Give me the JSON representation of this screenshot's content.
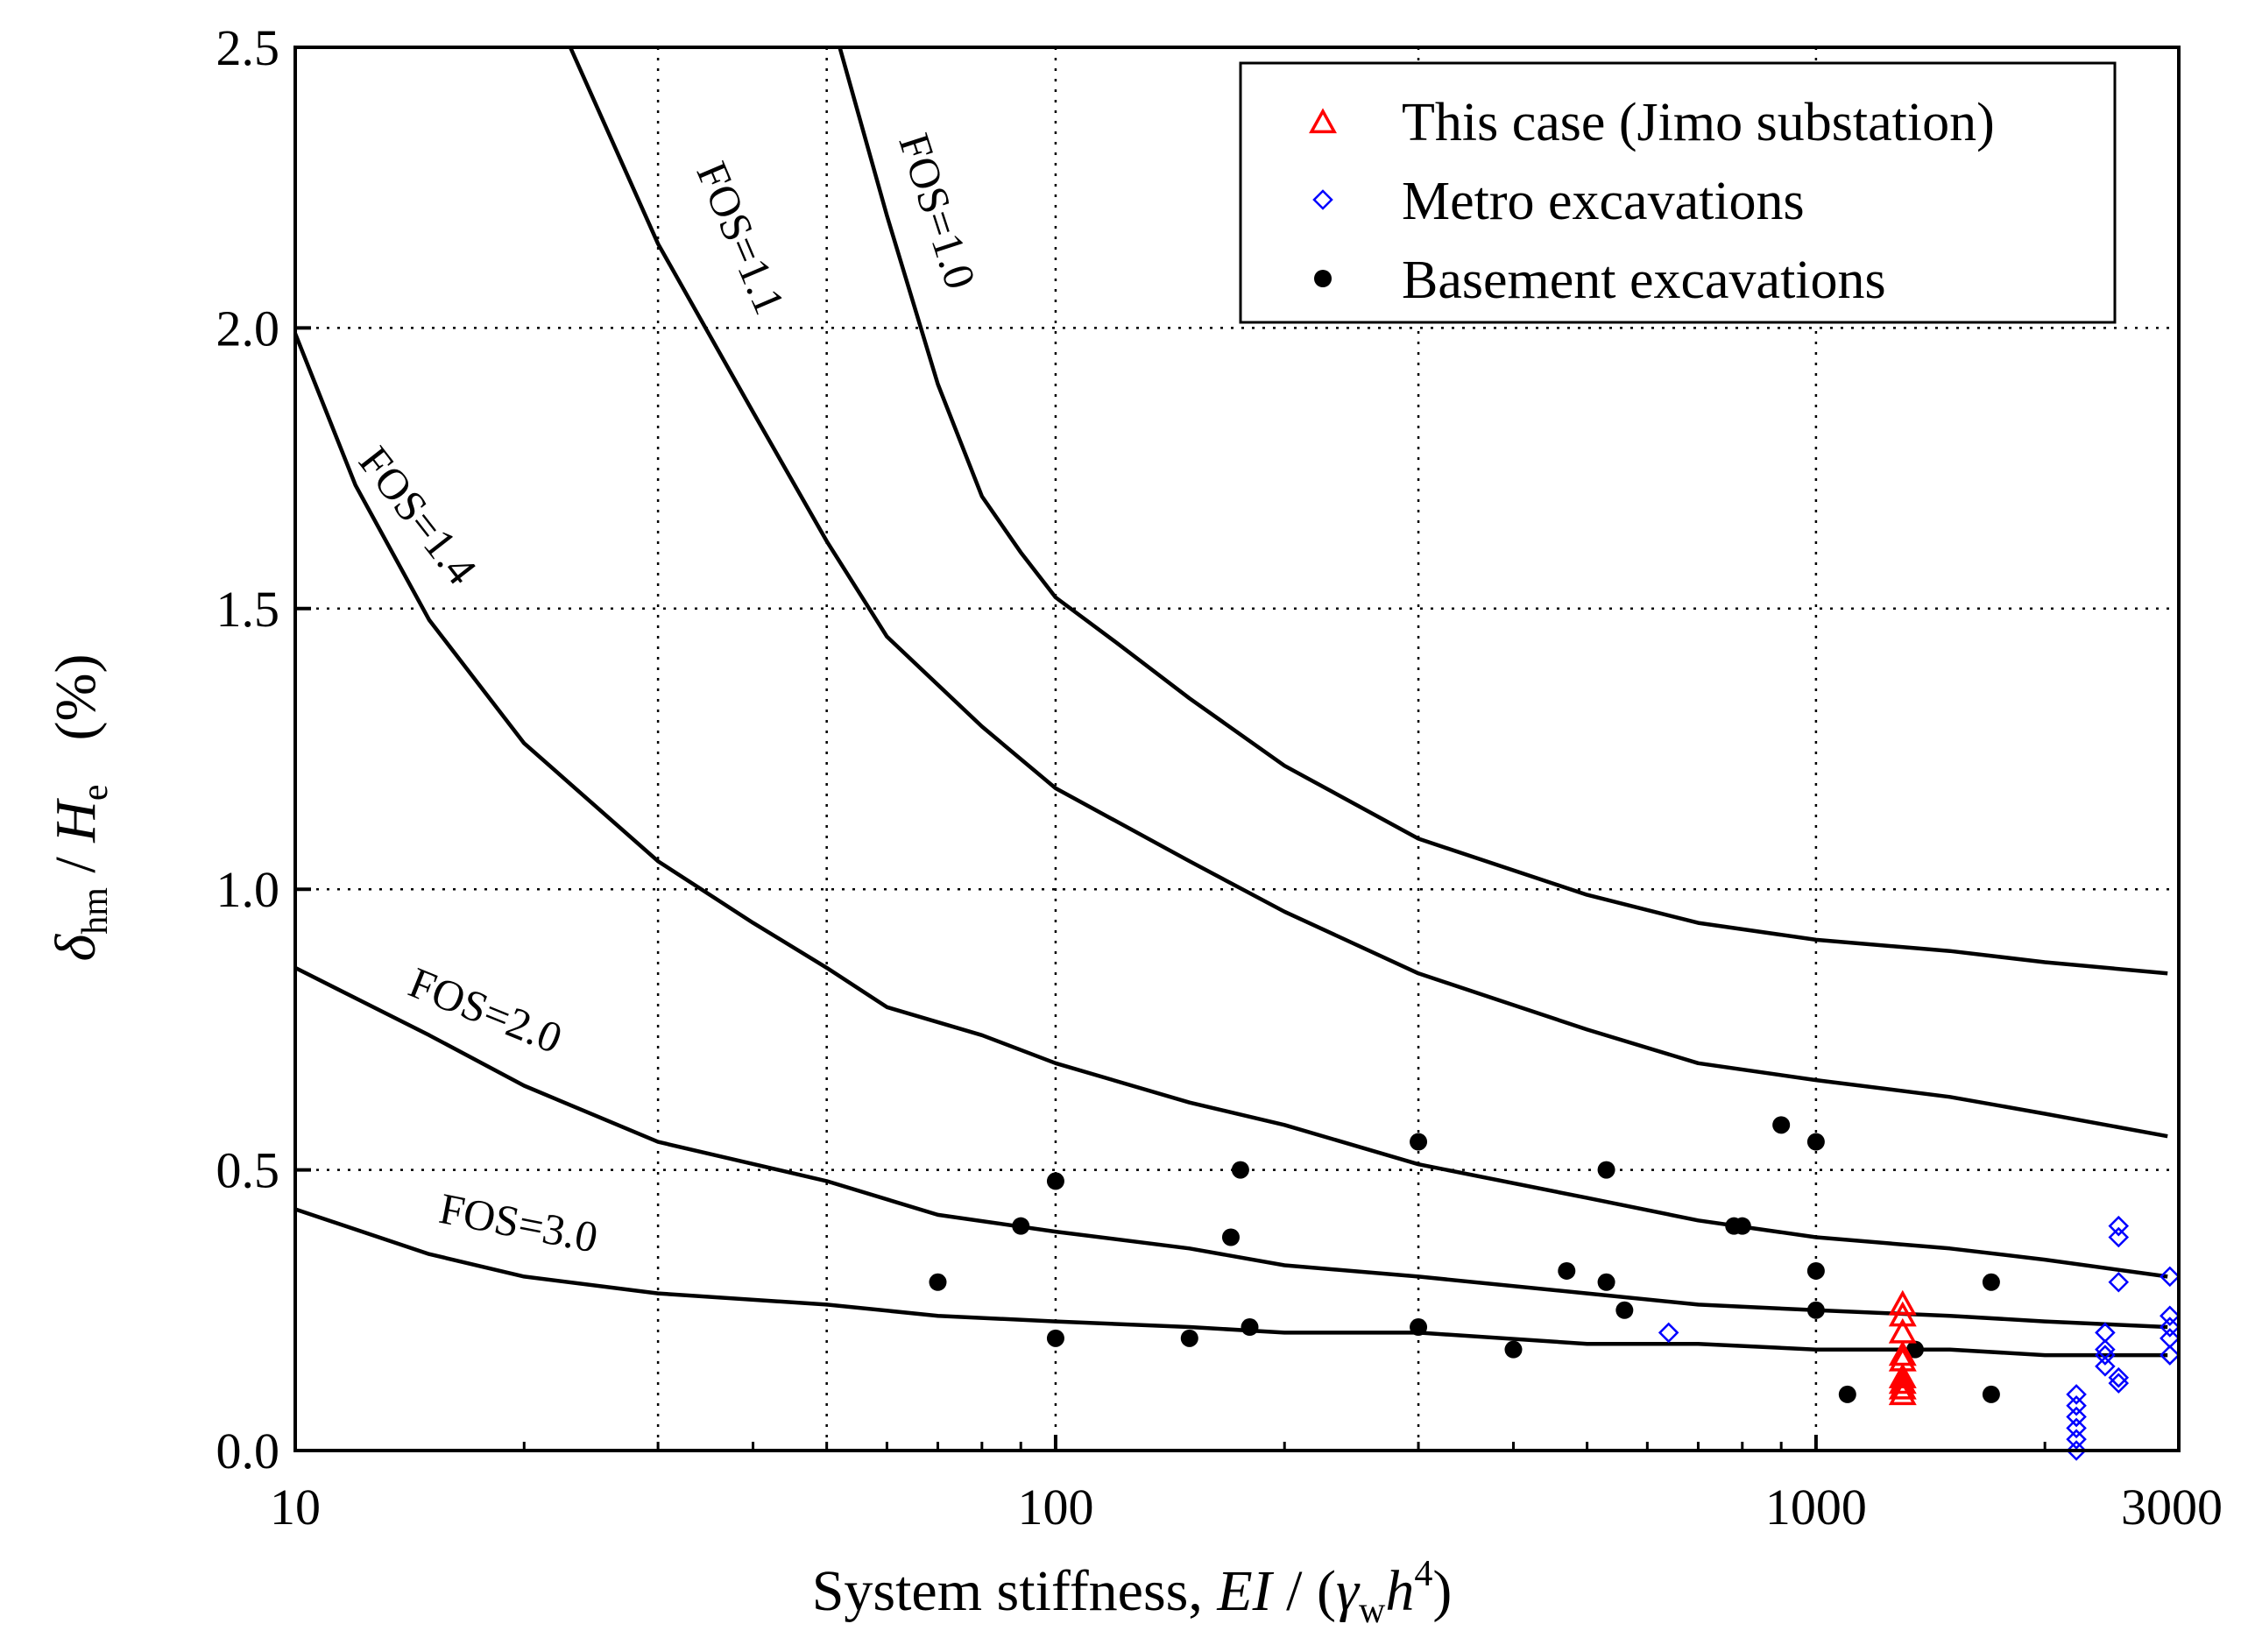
{
  "chart_data": {
    "type": "scatter",
    "xscale": "log",
    "xlim": [
      10,
      3000
    ],
    "ylim": [
      0,
      2.5
    ],
    "x_ticks": [
      10,
      100,
      1000,
      3000
    ],
    "x_tick_labels": [
      "10",
      "100",
      "1000",
      "3000"
    ],
    "x_gridlines": [
      30,
      50,
      100,
      300,
      1000
    ],
    "y_ticks": [
      0,
      0.5,
      1.0,
      1.5,
      2.0,
      2.5
    ],
    "y_tick_labels": [
      "0.0",
      "0.5",
      "1.0",
      "1.5",
      "2.0",
      "2.5"
    ],
    "xlabel": {
      "prefix": "System stiffness, ",
      "ei": "EI",
      "slash": " / (",
      "gamma": "γ",
      "gamma_sub": "w",
      "h": "h",
      "h_sup": "4",
      "close": ")"
    },
    "ylabel": {
      "delta": "δ",
      "delta_sub": "hm",
      "slash": " / ",
      "h": "H",
      "h_sub": "e",
      "units": "(%)"
    },
    "legend": {
      "position": "top-right",
      "entries": [
        {
          "key": "this_case",
          "label": "This case (Jimo substation)",
          "marker": "triangle",
          "color": "#ff0000"
        },
        {
          "key": "metro",
          "label": "Metro excavations",
          "marker": "diamond",
          "color": "#0000ff"
        },
        {
          "key": "basement",
          "label": "Basement excavations",
          "marker": "circle",
          "color": "#000000"
        }
      ]
    },
    "curves": [
      {
        "name": "FOS=1.0",
        "label": "FOS=1.0",
        "label_at": [
          67,
          2.2
        ],
        "label_angle": 72,
        "points": [
          [
            52,
            2.5
          ],
          [
            60,
            2.2
          ],
          [
            70,
            1.9
          ],
          [
            80,
            1.7
          ],
          [
            90,
            1.6
          ],
          [
            100,
            1.52
          ],
          [
            120,
            1.44
          ],
          [
            150,
            1.34
          ],
          [
            200,
            1.22
          ],
          [
            300,
            1.09
          ],
          [
            500,
            0.99
          ],
          [
            700,
            0.94
          ],
          [
            1000,
            0.91
          ],
          [
            1500,
            0.89
          ],
          [
            2000,
            0.87
          ],
          [
            2900,
            0.85
          ]
        ]
      },
      {
        "name": "FOS=1.1",
        "label": "FOS=1.1",
        "label_at": [
          37,
          2.15
        ],
        "label_angle": 67,
        "points": [
          [
            23,
            2.5
          ],
          [
            30,
            2.15
          ],
          [
            40,
            1.85
          ],
          [
            50,
            1.62
          ],
          [
            60,
            1.45
          ],
          [
            80,
            1.29
          ],
          [
            100,
            1.18
          ],
          [
            150,
            1.05
          ],
          [
            200,
            0.96
          ],
          [
            300,
            0.85
          ],
          [
            500,
            0.75
          ],
          [
            700,
            0.69
          ],
          [
            1000,
            0.66
          ],
          [
            1500,
            0.63
          ],
          [
            2000,
            0.6
          ],
          [
            2900,
            0.56
          ]
        ]
      },
      {
        "name": "FOS=1.4",
        "label": "FOS=1.4",
        "label_at": [
          14,
          1.65
        ],
        "label_angle": 52,
        "points": [
          [
            10,
            1.99
          ],
          [
            12,
            1.72
          ],
          [
            15,
            1.48
          ],
          [
            20,
            1.26
          ],
          [
            30,
            1.05
          ],
          [
            40,
            0.94
          ],
          [
            50,
            0.86
          ],
          [
            60,
            0.79
          ],
          [
            80,
            0.74
          ],
          [
            100,
            0.69
          ],
          [
            150,
            0.62
          ],
          [
            200,
            0.58
          ],
          [
            300,
            0.51
          ],
          [
            500,
            0.45
          ],
          [
            700,
            0.41
          ],
          [
            1000,
            0.38
          ],
          [
            1500,
            0.36
          ],
          [
            2000,
            0.34
          ],
          [
            2900,
            0.31
          ]
        ]
      },
      {
        "name": "FOS=2.0",
        "label": "FOS=2.0",
        "label_at": [
          17.5,
          0.76
        ],
        "label_angle": 22,
        "points": [
          [
            10,
            0.86
          ],
          [
            15,
            0.74
          ],
          [
            20,
            0.65
          ],
          [
            30,
            0.55
          ],
          [
            50,
            0.48
          ],
          [
            70,
            0.42
          ],
          [
            100,
            0.39
          ],
          [
            150,
            0.36
          ],
          [
            200,
            0.33
          ],
          [
            300,
            0.31
          ],
          [
            500,
            0.28
          ],
          [
            700,
            0.26
          ],
          [
            1000,
            0.25
          ],
          [
            1500,
            0.24
          ],
          [
            2000,
            0.23
          ],
          [
            2900,
            0.22
          ]
        ]
      },
      {
        "name": "FOS=3.0",
        "label": "FOS=3.0",
        "label_at": [
          19.5,
          0.38
        ],
        "label_angle": 11,
        "points": [
          [
            10,
            0.43
          ],
          [
            15,
            0.35
          ],
          [
            20,
            0.31
          ],
          [
            30,
            0.28
          ],
          [
            50,
            0.26
          ],
          [
            70,
            0.24
          ],
          [
            100,
            0.23
          ],
          [
            150,
            0.22
          ],
          [
            200,
            0.21
          ],
          [
            300,
            0.21
          ],
          [
            500,
            0.19
          ],
          [
            700,
            0.19
          ],
          [
            1000,
            0.18
          ],
          [
            1500,
            0.18
          ],
          [
            2000,
            0.17
          ],
          [
            2900,
            0.17
          ]
        ]
      }
    ],
    "series": [
      {
        "name": "Basement excavations",
        "key": "basement",
        "points": [
          [
            70,
            0.3
          ],
          [
            90,
            0.4
          ],
          [
            100,
            0.48
          ],
          [
            100,
            0.2
          ],
          [
            150,
            0.2
          ],
          [
            170,
            0.38
          ],
          [
            175,
            0.5
          ],
          [
            180,
            0.22
          ],
          [
            300,
            0.55
          ],
          [
            300,
            0.22
          ],
          [
            400,
            0.18
          ],
          [
            470,
            0.32
          ],
          [
            530,
            0.5
          ],
          [
            530,
            0.3
          ],
          [
            560,
            0.25
          ],
          [
            780,
            0.4
          ],
          [
            800,
            0.4
          ],
          [
            900,
            0.58
          ],
          [
            1000,
            0.55
          ],
          [
            1000,
            0.32
          ],
          [
            1000,
            0.25
          ],
          [
            1100,
            0.1
          ],
          [
            1350,
            0.18
          ],
          [
            1700,
            0.3
          ],
          [
            1700,
            0.1
          ]
        ]
      },
      {
        "name": "Metro excavations",
        "key": "metro",
        "points": [
          [
            640,
            0.21
          ],
          [
            2200,
            0.1
          ],
          [
            2200,
            0.08
          ],
          [
            2200,
            0.06
          ],
          [
            2200,
            0.04
          ],
          [
            2200,
            0.02
          ],
          [
            2200,
            0.0
          ],
          [
            2400,
            0.21
          ],
          [
            2400,
            0.18
          ],
          [
            2400,
            0.17
          ],
          [
            2400,
            0.15
          ],
          [
            2500,
            0.4
          ],
          [
            2500,
            0.38
          ],
          [
            2500,
            0.3
          ],
          [
            2500,
            0.13
          ],
          [
            2500,
            0.12
          ],
          [
            2920,
            0.31
          ],
          [
            2920,
            0.24
          ],
          [
            2920,
            0.22
          ],
          [
            2920,
            0.2
          ],
          [
            2920,
            0.17
          ]
        ]
      },
      {
        "name": "This case (Jimo substation)",
        "key": "this_case",
        "points": [
          [
            1300,
            0.26
          ],
          [
            1300,
            0.24
          ],
          [
            1300,
            0.21
          ],
          [
            1300,
            0.17
          ],
          [
            1300,
            0.16
          ],
          [
            1300,
            0.13
          ],
          [
            1300,
            0.12
          ],
          [
            1300,
            0.11
          ],
          [
            1300,
            0.1
          ]
        ]
      }
    ]
  }
}
